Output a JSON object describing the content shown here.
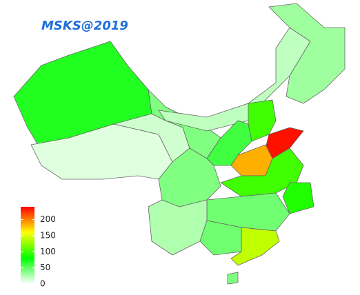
{
  "chart_data": {
    "type": "choropleth",
    "title": "MSKS@2019",
    "values": [
      70,
      10,
      15,
      40,
      20,
      30,
      100,
      235,
      185,
      60,
      40,
      100,
      90,
      45,
      25,
      45,
      140,
      40
    ],
    "colors": [
      "#ffffff",
      "#00ff00",
      "#ffff00",
      "#ff0000"
    ],
    "ylim": [
      0,
      240
    ],
    "yticks": [
      0,
      50,
      100,
      150,
      200
    ]
  }
}
